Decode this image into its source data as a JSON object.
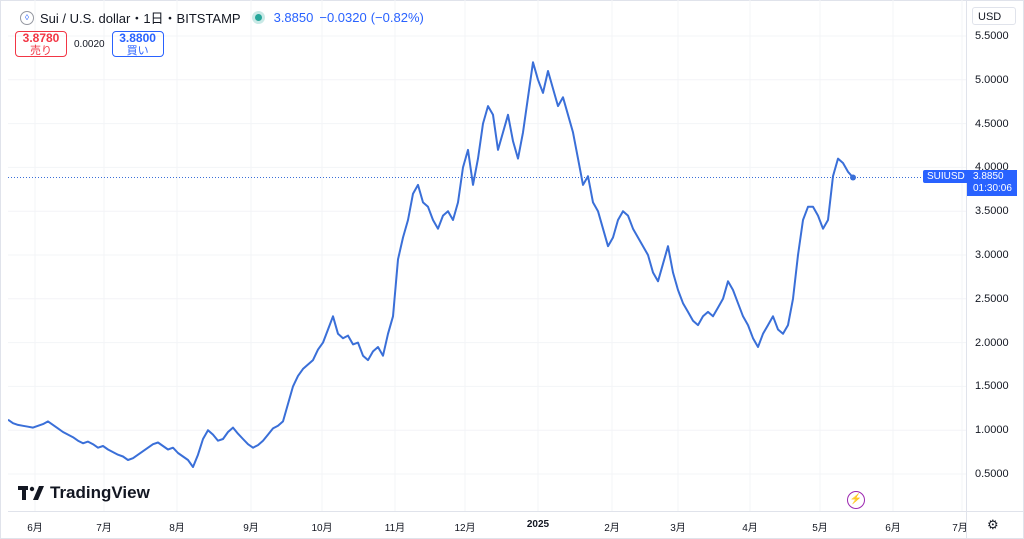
{
  "header": {
    "symbol_title": "Sui / U.S. dollar・1日・BITSTAMP",
    "price": "3.8850",
    "change": "−0.0320",
    "change_pct": "(−0.82%)"
  },
  "trade": {
    "sell_price": "3.8780",
    "sell_label": "売り",
    "spread": "0.0020",
    "buy_price": "3.8800",
    "buy_label": "買い"
  },
  "currency": "USD",
  "price_label": {
    "symbol": "SUIUSD",
    "price": "3.8850",
    "countdown": "01:30:06"
  },
  "logo_text": "TradingView",
  "colors": {
    "line": "#3a6fd8",
    "accent": "#2962ff",
    "sell": "#f23645"
  },
  "chart_data": {
    "type": "line",
    "title": "Sui / U.S. dollar・1日・BITSTAMP",
    "ylim": [
      0.25,
      5.7
    ],
    "y_ticks": [
      0.5,
      1.0,
      1.5,
      2.0,
      2.5,
      3.0,
      3.5,
      4.0,
      4.5,
      5.0,
      5.5
    ],
    "y_tick_labels": [
      "0.5000",
      "1.0000",
      "1.5000",
      "2.0000",
      "2.5000",
      "3.0000",
      "3.5000",
      "4.0000",
      "4.5000",
      "5.0000",
      "5.5000"
    ],
    "x_tick_labels": [
      "6月",
      "7月",
      "8月",
      "9月",
      "10月",
      "11月",
      "12月",
      "2025",
      "2月",
      "3月",
      "4月",
      "5月",
      "6月",
      "7月"
    ],
    "last_value": 3.885,
    "series": [
      {
        "name": "SUIUSD",
        "values": [
          1.12,
          1.08,
          1.06,
          1.05,
          1.04,
          1.03,
          1.05,
          1.07,
          1.1,
          1.06,
          1.02,
          0.98,
          0.95,
          0.92,
          0.88,
          0.85,
          0.87,
          0.84,
          0.8,
          0.82,
          0.78,
          0.75,
          0.72,
          0.7,
          0.66,
          0.68,
          0.72,
          0.76,
          0.8,
          0.84,
          0.86,
          0.82,
          0.78,
          0.8,
          0.74,
          0.7,
          0.66,
          0.58,
          0.72,
          0.9,
          1.0,
          0.95,
          0.88,
          0.9,
          0.98,
          1.03,
          0.96,
          0.9,
          0.84,
          0.8,
          0.83,
          0.88,
          0.95,
          1.02,
          1.05,
          1.1,
          1.3,
          1.5,
          1.62,
          1.7,
          1.75,
          1.8,
          1.92,
          2.0,
          2.15,
          2.3,
          2.1,
          2.05,
          2.08,
          1.98,
          2.0,
          1.85,
          1.8,
          1.9,
          1.95,
          1.85,
          2.1,
          2.3,
          2.95,
          3.2,
          3.4,
          3.7,
          3.8,
          3.6,
          3.55,
          3.4,
          3.3,
          3.45,
          3.5,
          3.4,
          3.6,
          4.0,
          4.2,
          3.8,
          4.1,
          4.5,
          4.7,
          4.6,
          4.2,
          4.4,
          4.6,
          4.3,
          4.1,
          4.4,
          4.8,
          5.2,
          5.0,
          4.85,
          5.1,
          4.9,
          4.7,
          4.8,
          4.6,
          4.4,
          4.1,
          3.8,
          3.9,
          3.6,
          3.5,
          3.3,
          3.1,
          3.2,
          3.4,
          3.5,
          3.45,
          3.3,
          3.2,
          3.1,
          3.0,
          2.8,
          2.7,
          2.9,
          3.1,
          2.8,
          2.6,
          2.45,
          2.35,
          2.25,
          2.2,
          2.3,
          2.35,
          2.3,
          2.4,
          2.5,
          2.7,
          2.6,
          2.45,
          2.3,
          2.2,
          2.05,
          1.95,
          2.1,
          2.2,
          2.3,
          2.15,
          2.1,
          2.2,
          2.5,
          3.0,
          3.4,
          3.55,
          3.55,
          3.45,
          3.3,
          3.4,
          3.9,
          4.1,
          4.05,
          3.95,
          3.885
        ]
      }
    ]
  }
}
